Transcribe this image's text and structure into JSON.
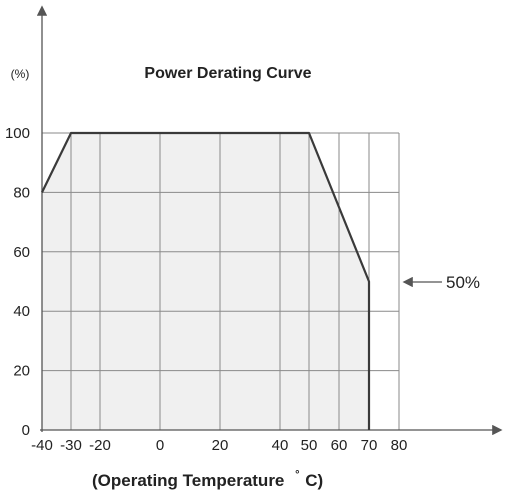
{
  "chart_data": {
    "type": "area",
    "title": "Power Derating Curve",
    "ylabel": "(%)",
    "xlabel": "(Operating Temperature",
    "xlabel_degree": "°",
    "xlabel_unit": "C)",
    "x_ticks": [
      "-40",
      "-30",
      "-20",
      "0",
      "20",
      "40",
      "50",
      "60",
      "70",
      "80"
    ],
    "y_ticks": [
      "0",
      "20",
      "40",
      "60",
      "80",
      "100"
    ],
    "xlim": [
      -40,
      80
    ],
    "ylim": [
      0,
      100
    ],
    "grid": true,
    "series": [
      {
        "x": [
          -40,
          -30,
          50,
          70,
          70
        ],
        "y": [
          80,
          100,
          100,
          50,
          0
        ]
      }
    ],
    "annotation": {
      "text": "50%",
      "points_to_y": 50
    },
    "colors": {
      "fill": "#f0f0f0",
      "line": "#3a3a3a",
      "grid": "#8a8a8a",
      "axis": "#555555"
    }
  }
}
